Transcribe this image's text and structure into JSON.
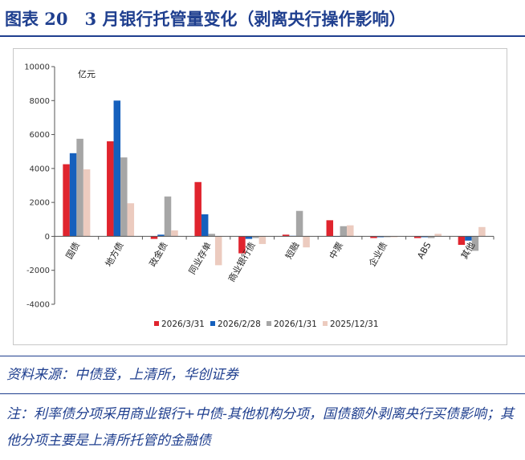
{
  "title": "图表 20　3 月银行托管量变化（剥离央行操作影响）",
  "source": "资料来源：中债登，上清所，华创证券",
  "note": "注：利率债分项采用商业银行+中债-其他机构分项，国债额外剥离央行买债影响；其他分项主要是上清所托管的金融债",
  "chart_data": {
    "type": "bar",
    "unit_label": "亿元",
    "ylim": [
      -4000,
      10000
    ],
    "yticks": [
      -4000,
      -2000,
      0,
      2000,
      4000,
      6000,
      8000,
      10000
    ],
    "grid": false,
    "legend_position": "bottom",
    "categories": [
      "国债",
      "地方债",
      "政金债",
      "同业存单",
      "商业银行债",
      "短融",
      "中票",
      "企业债",
      "ABS",
      "其他"
    ],
    "series": [
      {
        "name": "2026/3/31",
        "color": "#e0242e",
        "values": [
          4250,
          5600,
          -150,
          3200,
          -1000,
          100,
          950,
          -100,
          -100,
          -500
        ]
      },
      {
        "name": "2026/2/28",
        "color": "#1560bd",
        "values": [
          4900,
          8000,
          100,
          1300,
          -150,
          30,
          0,
          -50,
          -50,
          -250
        ]
      },
      {
        "name": "2026/1/31",
        "color": "#a6a6a6",
        "values": [
          5750,
          4650,
          2350,
          150,
          -100,
          1500,
          600,
          -50,
          -100,
          -850
        ]
      },
      {
        "name": "2025/12/31",
        "color": "#eccbbf",
        "values": [
          3950,
          1950,
          350,
          -1700,
          -450,
          -650,
          650,
          -50,
          150,
          550
        ]
      }
    ]
  }
}
